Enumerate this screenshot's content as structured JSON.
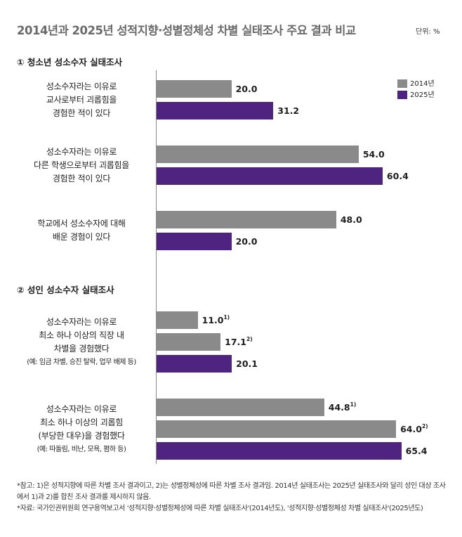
{
  "title": "2014년과 2025년 성적지향·성별정체성 차별 실태조사 주요 결과 비교",
  "unit": "단위: %",
  "legend": [
    {
      "name": "2014년",
      "color": "#8a8a8a"
    },
    {
      "name": "2025년",
      "color": "#4f2481"
    }
  ],
  "sections": [
    {
      "title": "① 청소년 성소수자 실태조사"
    },
    {
      "title": "② 성인 성소수자 실태조사"
    }
  ],
  "chart_data": {
    "type": "bar",
    "orientation": "horizontal",
    "xlim": [
      0,
      100
    ],
    "groups": [
      {
        "section": 0,
        "label_lines": [
          "성소수자라는 이유로",
          "교사로부터 괴롭힘을",
          "경험한 적이 있다"
        ],
        "note": "",
        "bars": [
          {
            "series": "2014년",
            "value": 20.0,
            "label": "20.0",
            "mark": ""
          },
          {
            "series": "2025년",
            "value": 31.2,
            "label": "31.2",
            "mark": ""
          }
        ]
      },
      {
        "section": 0,
        "label_lines": [
          "성소수자라는 이유로",
          "다른 학생으로부터 괴롭힘을",
          "경험한 적이 있다"
        ],
        "note": "",
        "bars": [
          {
            "series": "2014년",
            "value": 54.0,
            "label": "54.0",
            "mark": ""
          },
          {
            "series": "2025년",
            "value": 60.4,
            "label": "60.4",
            "mark": ""
          }
        ]
      },
      {
        "section": 0,
        "label_lines": [
          "학교에서 성소수자에 대해",
          "배운 경험이 있다"
        ],
        "note": "",
        "bars": [
          {
            "series": "2014년",
            "value": 48.0,
            "label": "48.0",
            "mark": ""
          },
          {
            "series": "2025년",
            "value": 20.0,
            "label": "20.0",
            "mark": ""
          }
        ]
      },
      {
        "section": 1,
        "label_lines": [
          "성소수자라는 이유로",
          "최소 하나 이상의 직장 내",
          "차별을 경험했다"
        ],
        "note": "(예: 임금 차별, 승진 탈락, 업무 배제 등)",
        "bars": [
          {
            "series": "2014년",
            "value": 11.0,
            "label": "11.0",
            "mark": "1)"
          },
          {
            "series": "2014년",
            "value": 17.1,
            "label": "17.1",
            "mark": "2)"
          },
          {
            "series": "2025년",
            "value": 20.1,
            "label": "20.1",
            "mark": ""
          }
        ]
      },
      {
        "section": 1,
        "label_lines": [
          "성소수자라는 이유로",
          "최소 하나 이상의 괴롭힘",
          "(부당한 대우)을 경험했다"
        ],
        "note": "(예: 따돌림, 비난, 모욕, 폄하 등)",
        "bars": [
          {
            "series": "2014년",
            "value": 44.8,
            "label": "44.8",
            "mark": "1)"
          },
          {
            "series": "2014년",
            "value": 64.0,
            "label": "64.0",
            "mark": "2)"
          },
          {
            "series": "2025년",
            "value": 65.4,
            "label": "65.4",
            "mark": ""
          }
        ]
      }
    ]
  },
  "notes": [
    "*참고: 1)은 성적지향에 따른 차별 조사 결과이고, 2)는 성별정체성에 따른 차별 조사 결과임. 2014년 실태조사는 2025년 실태조사와 달리 성인 대상 조사에서 1)과 2)를 합친 조사 결과를 제시하지 않음.",
    "*자료: 국가인권위원회 연구용역보고서 '성적지향·성별정체성에 따른 차별 실태조사'(2014년도), '성적지향·성별정체성 차별 실태조사'(2025년도)"
  ]
}
